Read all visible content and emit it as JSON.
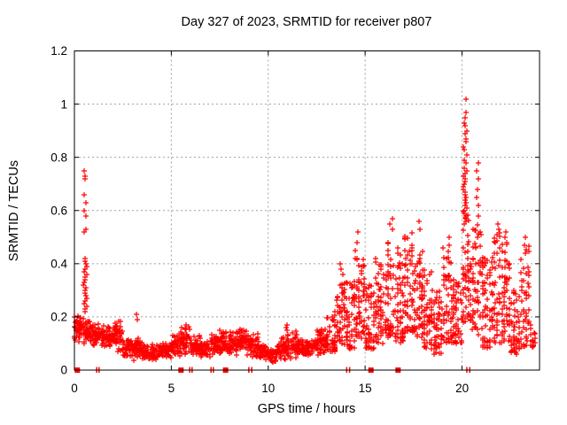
{
  "chart_data": {
    "type": "scatter",
    "title": "Day 327 of 2023, SRMTID for receiver p807",
    "xlabel": "GPS time / hours",
    "ylabel": "SRMTID / TECUs",
    "xlim": [
      0,
      24
    ],
    "ylim": [
      0,
      1.2
    ],
    "x_ticks": [
      0,
      5,
      10,
      15,
      20
    ],
    "y_ticks": [
      0,
      0.2,
      0.4,
      0.6,
      0.8,
      1.0,
      1.2
    ],
    "x_tick_labels": [
      "0",
      "5",
      "10",
      "15",
      "20"
    ],
    "y_tick_labels": [
      "0",
      "0.2",
      "0.4",
      "0.6",
      "0.8",
      "1",
      "1.2"
    ],
    "grid": true,
    "legend": "none",
    "marker": "plus",
    "marker_color": "#ff0000",
    "grid_color": "#a0a0a0",
    "axis_color": "#000000",
    "background_color": "#ffffff",
    "max_point": {
      "t": 20.1,
      "value": 1.02
    },
    "band_envelope": [
      [
        0.0,
        0.5,
        0.1,
        0.21,
        50
      ],
      [
        0.5,
        1.0,
        0.09,
        0.2,
        50
      ],
      [
        1.0,
        1.5,
        0.08,
        0.18,
        48
      ],
      [
        1.5,
        2.0,
        0.07,
        0.17,
        48
      ],
      [
        2.0,
        2.5,
        0.05,
        0.2,
        48
      ],
      [
        2.5,
        3.0,
        0.04,
        0.12,
        46
      ],
      [
        3.0,
        3.5,
        0.03,
        0.13,
        46
      ],
      [
        3.5,
        4.0,
        0.03,
        0.1,
        46
      ],
      [
        4.0,
        4.5,
        0.03,
        0.1,
        46
      ],
      [
        4.5,
        5.0,
        0.04,
        0.11,
        46
      ],
      [
        5.0,
        5.5,
        0.04,
        0.15,
        48
      ],
      [
        5.5,
        6.0,
        0.05,
        0.18,
        48
      ],
      [
        6.0,
        6.5,
        0.05,
        0.13,
        46
      ],
      [
        6.5,
        7.0,
        0.04,
        0.12,
        46
      ],
      [
        7.0,
        7.5,
        0.05,
        0.14,
        46
      ],
      [
        7.5,
        8.0,
        0.04,
        0.16,
        48
      ],
      [
        8.0,
        8.5,
        0.05,
        0.16,
        48
      ],
      [
        8.5,
        9.0,
        0.05,
        0.17,
        48
      ],
      [
        9.0,
        9.5,
        0.04,
        0.14,
        46
      ],
      [
        9.5,
        10.0,
        0.03,
        0.1,
        46
      ],
      [
        10.0,
        10.5,
        0.02,
        0.09,
        46
      ],
      [
        10.5,
        11.0,
        0.03,
        0.13,
        46
      ],
      [
        11.0,
        11.5,
        0.04,
        0.15,
        48
      ],
      [
        11.5,
        12.0,
        0.04,
        0.12,
        48
      ],
      [
        12.0,
        12.5,
        0.05,
        0.13,
        48
      ],
      [
        12.5,
        13.0,
        0.05,
        0.17,
        48
      ],
      [
        13.0,
        13.5,
        0.07,
        0.22,
        50
      ],
      [
        13.5,
        14.0,
        0.09,
        0.33,
        52
      ],
      [
        14.0,
        14.5,
        0.08,
        0.35,
        52
      ],
      [
        14.5,
        15.0,
        0.12,
        0.42,
        54
      ],
      [
        15.0,
        15.5,
        0.08,
        0.32,
        50
      ],
      [
        15.5,
        16.0,
        0.1,
        0.42,
        52
      ],
      [
        16.0,
        16.5,
        0.12,
        0.5,
        54
      ],
      [
        16.5,
        17.0,
        0.1,
        0.46,
        52
      ],
      [
        17.0,
        17.5,
        0.14,
        0.52,
        55
      ],
      [
        17.5,
        18.0,
        0.12,
        0.45,
        54
      ],
      [
        18.0,
        18.5,
        0.08,
        0.38,
        52
      ],
      [
        18.5,
        19.0,
        0.06,
        0.3,
        50
      ],
      [
        19.0,
        19.5,
        0.1,
        0.48,
        52
      ],
      [
        19.5,
        20.0,
        0.1,
        0.35,
        52
      ],
      [
        20.0,
        20.5,
        0.18,
        0.6,
        55
      ],
      [
        20.5,
        21.0,
        0.12,
        0.55,
        54
      ],
      [
        21.0,
        21.5,
        0.08,
        0.45,
        54
      ],
      [
        21.5,
        22.0,
        0.1,
        0.52,
        54
      ],
      [
        22.0,
        22.5,
        0.1,
        0.5,
        54
      ],
      [
        22.5,
        23.0,
        0.06,
        0.3,
        48
      ],
      [
        23.0,
        23.5,
        0.08,
        0.48,
        44
      ],
      [
        23.5,
        23.8,
        0.08,
        0.22,
        14
      ]
    ],
    "spike_clusters": [
      {
        "t": 0.55,
        "spread": 0.15,
        "values": [
          0.75,
          0.73,
          0.72,
          0.66,
          0.63,
          0.6,
          0.58,
          0.53,
          0.52,
          0.42,
          0.41,
          0.4,
          0.39,
          0.38,
          0.37,
          0.36,
          0.35,
          0.34,
          0.33,
          0.32,
          0.31,
          0.3,
          0.29,
          0.28,
          0.27,
          0.26,
          0.25,
          0.24,
          0.23,
          0.22
        ]
      },
      {
        "t": 3.2,
        "spread": 0.1,
        "values": [
          0.21,
          0.19
        ]
      },
      {
        "t": 10.95,
        "spread": 0.12,
        "values": [
          0.17,
          0.16,
          0.15
        ]
      },
      {
        "t": 13.8,
        "spread": 0.15,
        "values": [
          0.4,
          0.38,
          0.36
        ]
      },
      {
        "t": 14.6,
        "spread": 0.2,
        "values": [
          0.52,
          0.48,
          0.45,
          0.42
        ]
      },
      {
        "t": 16.35,
        "spread": 0.15,
        "values": [
          0.57,
          0.55,
          0.53
        ]
      },
      {
        "t": 17.85,
        "spread": 0.15,
        "values": [
          0.56,
          0.53
        ]
      },
      {
        "t": 19.3,
        "spread": 0.15,
        "values": [
          0.5,
          0.47
        ]
      },
      {
        "t": 20.15,
        "spread": 0.18,
        "values": [
          1.02,
          0.97,
          0.95,
          0.93,
          0.92,
          0.9,
          0.89,
          0.87,
          0.86,
          0.84,
          0.83,
          0.81,
          0.79,
          0.78,
          0.76,
          0.75,
          0.74,
          0.73,
          0.72,
          0.71,
          0.7,
          0.69,
          0.68,
          0.67,
          0.66,
          0.65,
          0.64,
          0.63,
          0.62,
          0.61,
          0.6,
          0.59,
          0.58,
          0.57,
          0.56,
          0.55
        ]
      },
      {
        "t": 20.8,
        "spread": 0.15,
        "values": [
          0.78,
          0.75,
          0.72,
          0.68,
          0.65,
          0.62,
          0.58
        ]
      },
      {
        "t": 21.85,
        "spread": 0.12,
        "values": [
          0.55,
          0.53,
          0.51
        ]
      },
      {
        "t": 22.25,
        "spread": 0.12,
        "values": [
          0.52,
          0.5,
          0.48
        ]
      },
      {
        "t": 23.25,
        "spread": 0.12,
        "values": [
          0.5,
          0.47,
          0.44
        ]
      }
    ],
    "zero_value_markers": [
      {
        "t": 0.15,
        "style": "square"
      },
      {
        "t": 1.15,
        "style": "tick"
      },
      {
        "t": 1.27,
        "style": "tick"
      },
      {
        "t": 5.5,
        "style": "square"
      },
      {
        "t": 5.95,
        "style": "tick"
      },
      {
        "t": 6.07,
        "style": "tick"
      },
      {
        "t": 7.05,
        "style": "tick"
      },
      {
        "t": 7.17,
        "style": "tick"
      },
      {
        "t": 7.8,
        "style": "square"
      },
      {
        "t": 9.0,
        "style": "tick"
      },
      {
        "t": 9.15,
        "style": "tick"
      },
      {
        "t": 14.05,
        "style": "tick"
      },
      {
        "t": 14.2,
        "style": "tick"
      },
      {
        "t": 15.3,
        "style": "square"
      },
      {
        "t": 16.7,
        "style": "square"
      },
      {
        "t": 20.25,
        "style": "tick"
      },
      {
        "t": 20.4,
        "style": "tick"
      }
    ]
  }
}
